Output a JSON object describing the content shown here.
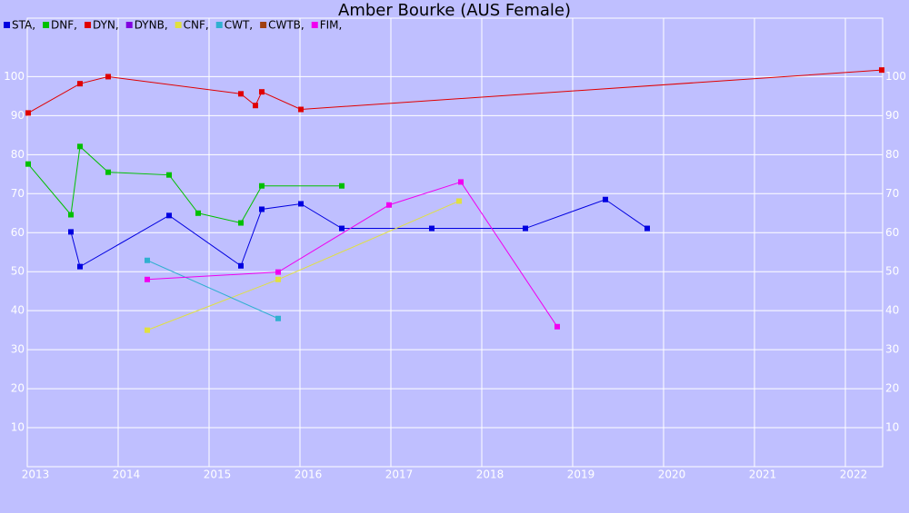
{
  "chart_data": {
    "type": "line",
    "title": "Amber Bourke (AUS Female)",
    "xlim": [
      2013,
      2022.41
    ],
    "xticks": [
      2013,
      2014,
      2015,
      2016,
      2017,
      2018,
      2019,
      2020,
      2021,
      2022
    ],
    "ylim": [
      0,
      115
    ],
    "yticks": [
      10,
      20,
      30,
      40,
      50,
      60,
      70,
      80,
      90,
      100
    ],
    "grid": true,
    "legend": "top-left",
    "series": [
      {
        "name": "STA,",
        "color": "#0000e0",
        "x": [
          2013.48,
          2013.58,
          2014.56,
          2015.35,
          2015.58,
          2016.01,
          2016.46,
          2017.45,
          2018.48,
          2019.36,
          2019.82
        ],
        "values": [
          60.2,
          51.3,
          64.4,
          51.5,
          66,
          67.4,
          61.1,
          61.1,
          61.1,
          68.5,
          61.1
        ]
      },
      {
        "name": "DNF,",
        "color": "#00c000",
        "x": [
          2013.01,
          2013.48,
          2013.58,
          2013.89,
          2014.56,
          2014.88,
          2015.35,
          2015.58,
          2016.46
        ],
        "values": [
          77.6,
          64.6,
          82.1,
          75.5,
          74.8,
          65,
          62.5,
          72,
          72
        ]
      },
      {
        "name": "DYN,",
        "color": "#e00000",
        "x": [
          2013.01,
          2013.58,
          2013.89,
          2015.35,
          2015.51,
          2015.58,
          2016.01,
          2022.4
        ],
        "values": [
          90.7,
          98.2,
          100,
          95.6,
          92.6,
          96.1,
          91.6,
          101.7
        ]
      },
      {
        "name": "DYNB,",
        "color": "#8000e0",
        "x": [],
        "values": []
      },
      {
        "name": "CNF,",
        "color": "#e0e040",
        "x": [
          2014.32,
          2015.76,
          2017.75
        ],
        "values": [
          35,
          48,
          68.1
        ]
      },
      {
        "name": "CWT,",
        "color": "#30b0d0",
        "x": [
          2014.32,
          2015.76
        ],
        "values": [
          52.9,
          38
        ]
      },
      {
        "name": "CWTB,",
        "color": "#a04010",
        "x": [],
        "values": []
      },
      {
        "name": "FIM,",
        "color": "#f000f0",
        "x": [
          2014.32,
          2015.76,
          2016.98,
          2017.77,
          2018.83
        ],
        "values": [
          48,
          49.9,
          67.1,
          73,
          35.9
        ]
      }
    ]
  }
}
